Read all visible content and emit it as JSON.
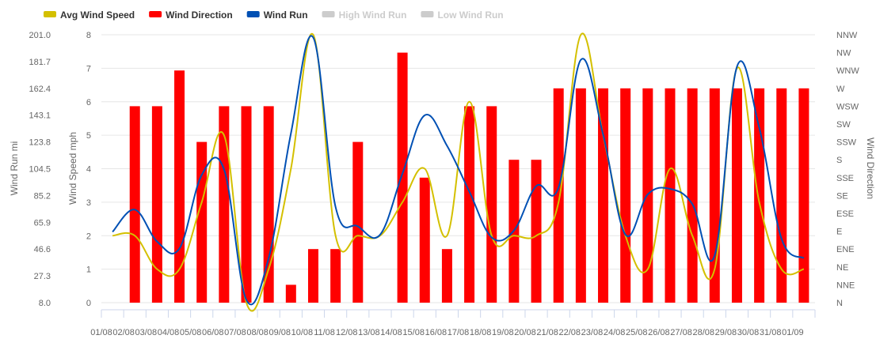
{
  "chart_data": {
    "type": "bar+line",
    "title": "",
    "legend_position": "top-left",
    "categories": [
      "01/08",
      "02/08",
      "03/08",
      "04/08",
      "05/08",
      "06/08",
      "07/08",
      "08/08",
      "09/08",
      "10/08",
      "11/08",
      "12/08",
      "13/08",
      "14/08",
      "15/08",
      "16/08",
      "17/08",
      "18/08",
      "19/08",
      "20/08",
      "21/08",
      "22/08",
      "23/08",
      "24/08",
      "25/08",
      "26/08",
      "27/08",
      "28/08",
      "29/08",
      "30/08",
      "31/08",
      "01/09"
    ],
    "legend": [
      {
        "name": "Avg Wind Speed",
        "color": "#d4c000",
        "enabled": true
      },
      {
        "name": "Wind Direction",
        "color": "#ff0000",
        "enabled": true
      },
      {
        "name": "Wind Run",
        "color": "#0050b4",
        "enabled": true
      },
      {
        "name": "High Wind Run",
        "color": "#cccccc",
        "enabled": false
      },
      {
        "name": "Low Wind Run",
        "color": "#cccccc",
        "enabled": false
      }
    ],
    "axes": {
      "wind_run": {
        "title": "Wind Run mi",
        "min": 8.0,
        "max": 201.0,
        "ticks": [
          "8.0",
          "27.3",
          "46.6",
          "65.9",
          "85.2",
          "104.5",
          "123.8",
          "143.1",
          "162.4",
          "181.7",
          "201.0"
        ]
      },
      "wind_speed": {
        "title": "Wind Speed mph",
        "min": 0,
        "max": 8,
        "ticks": [
          "0",
          "1",
          "2",
          "3",
          "4",
          "5",
          "6",
          "7",
          "8"
        ]
      },
      "wind_direction": {
        "title": "Wind Direction",
        "ticks": [
          "N",
          "NNE",
          "NE",
          "ENE",
          "E",
          "ESE",
          "SE",
          "SSE",
          "S",
          "SSW",
          "SW",
          "WSW",
          "W",
          "WNW",
          "NW",
          "NNW"
        ]
      }
    },
    "series": [
      {
        "name": "Wind Direction",
        "type": "bar",
        "axis": "wind_direction",
        "values": [
          null,
          11,
          11,
          13,
          9,
          11,
          11,
          11,
          1,
          3,
          3,
          9,
          null,
          14,
          7,
          3,
          11,
          11,
          8,
          8,
          12,
          12,
          12,
          12,
          12,
          12,
          12,
          12,
          12,
          12,
          12,
          12
        ]
      },
      {
        "name": "Avg Wind Speed",
        "type": "line",
        "axis": "wind_speed",
        "values": [
          2,
          2,
          1,
          1,
          3,
          5,
          0,
          1,
          4,
          8,
          2,
          2,
          2,
          3,
          4,
          2,
          6,
          2,
          2,
          2,
          3,
          8,
          5,
          2,
          1,
          4,
          2,
          1,
          7,
          3,
          1,
          1
        ]
      },
      {
        "name": "Wind Run",
        "type": "line",
        "axis": "wind_run",
        "values": [
          59.0,
          75.0,
          52.0,
          47.0,
          100.0,
          104.0,
          10.0,
          40.0,
          130.0,
          199.0,
          77.0,
          63.0,
          57.0,
          101.0,
          143.0,
          121.0,
          88.0,
          55.0,
          60.0,
          92.0,
          91.0,
          183.0,
          129.0,
          57.0,
          86.0,
          90.0,
          79.0,
          42.0,
          178.0,
          134.0,
          54.0,
          40.0
        ]
      }
    ]
  }
}
